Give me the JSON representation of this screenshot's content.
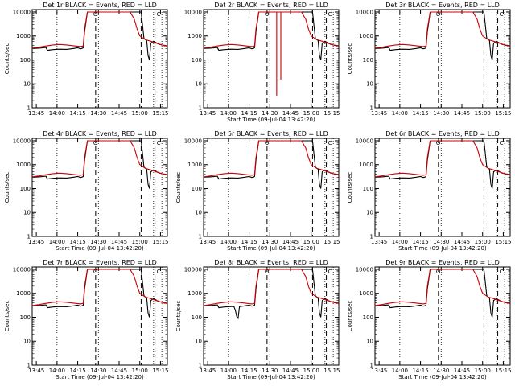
{
  "chart_data": [
    {
      "type": "line",
      "title": "Det 1r BLACK = Events, RED = LLD",
      "xlabel": "",
      "ylabel": "Counts/sec",
      "variant": "normal",
      "dip": false
    },
    {
      "type": "line",
      "title": "Det 2r BLACK = Events, RED = LLD",
      "xlabel": "Start Time (09-Jul-04 13:42:20)",
      "ylabel": "",
      "variant": "spiky",
      "dip": false
    },
    {
      "type": "line",
      "title": "Det 3r BLACK = Events, RED = LLD",
      "xlabel": "",
      "ylabel": "Counts/sec",
      "variant": "normal",
      "dip": false
    },
    {
      "type": "line",
      "title": "Det 4r BLACK = Events, RED = LLD",
      "xlabel": "Start Time (09-Jul-04 13:42:20)",
      "ylabel": "Counts/sec",
      "variant": "normal",
      "dip": false
    },
    {
      "type": "line",
      "title": "Det 5r BLACK = Events, RED = LLD",
      "xlabel": "Start Time (09-Jul-04 13:42:20)",
      "ylabel": "Counts/sec",
      "variant": "normal",
      "dip": false
    },
    {
      "type": "line",
      "title": "Det 6r BLACK = Events, RED = LLD",
      "xlabel": "Start Time (09-Jul-04 13:42:20)",
      "ylabel": "Counts/sec",
      "variant": "normal",
      "dip": false
    },
    {
      "type": "line",
      "title": "Det 7r BLACK = Events, RED = LLD",
      "xlabel": "Start Time (09-Jul-04 13:42:20)",
      "ylabel": "Counts/sec",
      "variant": "normal",
      "dip": false
    },
    {
      "type": "line",
      "title": "Det 8r BLACK = Events, RED = LLD",
      "xlabel": "Start Time (09-Jul-04 13:42:20)",
      "ylabel": "Counts/sec",
      "variant": "normal",
      "dip": true
    },
    {
      "type": "line",
      "title": "Det 9r BLACK = Events, RED = LLD",
      "xlabel": "Start Time (09-Jul-04 13:42:20)",
      "ylabel": "Counts/sec",
      "variant": "normal",
      "dip": false
    }
  ],
  "shared": {
    "xticks": [
      "13:45",
      "14:00",
      "14:15",
      "14:30",
      "14:45",
      "15:00",
      "15:15"
    ],
    "yticks": [
      "10000",
      "1000",
      "100",
      "10",
      "1"
    ],
    "markers": [
      "O",
      "C"
    ],
    "x_range_minutes": [
      0,
      98
    ],
    "y_range_log10": [
      0,
      4.1
    ],
    "dotted_lines_minutes": [
      18,
      48,
      88,
      94
    ],
    "dashed_lines_minutes": [
      46,
      79,
      89
    ],
    "events_series": {
      "name": "Events",
      "color": "#000000",
      "points": [
        [
          0,
          300
        ],
        [
          5,
          310
        ],
        [
          10,
          330
        ],
        [
          11,
          250
        ],
        [
          15,
          270
        ],
        [
          20,
          280
        ],
        [
          25,
          275
        ],
        [
          30,
          300
        ],
        [
          33,
          320
        ],
        [
          35,
          290
        ],
        [
          36,
          300
        ],
        [
          37,
          320
        ],
        [
          38,
          1500
        ],
        [
          40,
          10000
        ],
        [
          46,
          10000
        ],
        [
          79,
          10000
        ],
        [
          81,
          800
        ],
        [
          82,
          700
        ],
        [
          83,
          650
        ],
        [
          84,
          150
        ],
        [
          85,
          100
        ],
        [
          86,
          500
        ],
        [
          88,
          600
        ],
        [
          90,
          520
        ],
        [
          92,
          450
        ],
        [
          94,
          420
        ],
        [
          96,
          390
        ],
        [
          98,
          380
        ]
      ]
    },
    "lld_series": {
      "name": "LLD",
      "color": "#cc0000",
      "points": [
        [
          0,
          310
        ],
        [
          5,
          340
        ],
        [
          10,
          380
        ],
        [
          15,
          420
        ],
        [
          20,
          440
        ],
        [
          25,
          420
        ],
        [
          30,
          390
        ],
        [
          35,
          360
        ],
        [
          37,
          380
        ],
        [
          38,
          2000
        ],
        [
          40,
          10000
        ],
        [
          46,
          10000
        ],
        [
          50,
          10000
        ],
        [
          71,
          10000
        ],
        [
          74,
          5000
        ],
        [
          76,
          2000
        ],
        [
          78,
          1000
        ],
        [
          82,
          700
        ],
        [
          86,
          600
        ],
        [
          90,
          500
        ],
        [
          94,
          420
        ],
        [
          98,
          390
        ]
      ]
    }
  }
}
